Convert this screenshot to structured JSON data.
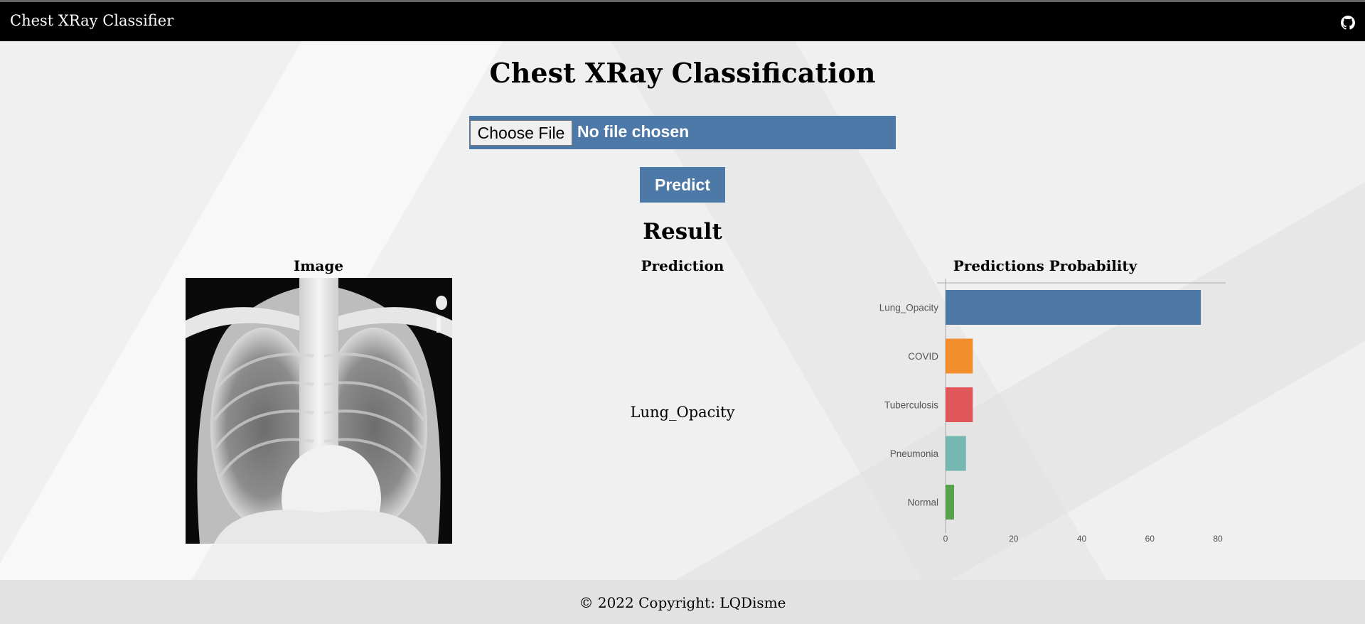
{
  "navbar": {
    "brand": "Chest XRay Classifier",
    "github_icon": "github-icon"
  },
  "heading": "Chest XRay Classification",
  "file_input": {
    "button_label": "Choose File",
    "status": "No file chosen"
  },
  "predict_label": "Predict",
  "result_title": "Result",
  "columns": {
    "image": "Image",
    "prediction": "Prediction",
    "probability": "Predictions Probability"
  },
  "prediction_value": "Lung_Opacity",
  "chart_data": {
    "type": "bar",
    "orientation": "horizontal",
    "categories": [
      "Lung_Opacity",
      "COVID",
      "Tuberculosis",
      "Pneumonia",
      "Normal"
    ],
    "values": [
      75,
      8,
      8,
      6,
      2.5
    ],
    "colors": [
      "#4e79a7",
      "#f28e2b",
      "#e15759",
      "#76b7b2",
      "#59a14f"
    ],
    "xlim": [
      0,
      80
    ],
    "xticks": [
      0,
      20,
      40,
      60,
      80
    ],
    "grid": false
  },
  "footer": {
    "copyright": "© 2022 Copyright: LQDisme"
  }
}
